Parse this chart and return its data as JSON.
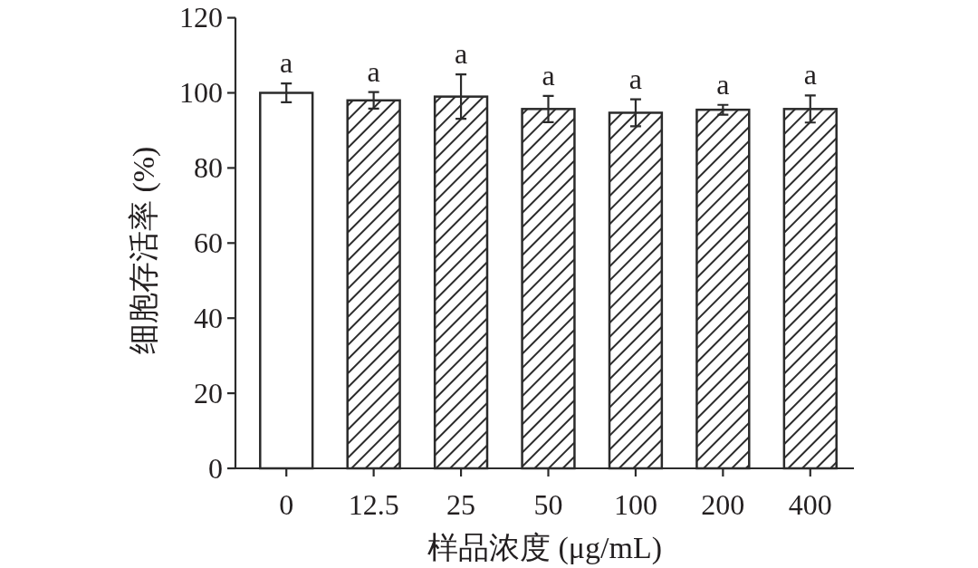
{
  "chart_data": {
    "type": "bar",
    "xlabel": "样品浓度 (μg/mL)",
    "ylabel": "细胞存活率 (%)",
    "categories": [
      "0",
      "12.5",
      "25",
      "50",
      "100",
      "200",
      "400"
    ],
    "values": [
      100,
      98,
      99,
      95.7,
      94.7,
      95.5,
      95.7
    ],
    "errors": [
      2.5,
      2.2,
      5.9,
      3.5,
      3.6,
      1.3,
      3.6
    ],
    "colors": [
      "#ffffff",
      "#2b2b2b",
      "#2b2b2b",
      "#2b2b2b",
      "#2b2b2b",
      "#2b2b2b",
      "#2b2b2b"
    ],
    "ylim": [
      0,
      120
    ],
    "yticks": [
      0,
      20,
      40,
      60,
      80,
      100,
      120
    ],
    "annotations": [
      {
        "text": "a",
        "x": "0",
        "y": 102.5
      },
      {
        "text": "a",
        "x": "12.5",
        "y": 100.2
      },
      {
        "text": "a",
        "x": "25",
        "y": 104.9
      },
      {
        "text": "a",
        "x": "50",
        "y": 99.2
      },
      {
        "text": "a",
        "x": "100",
        "y": 98.3
      },
      {
        "text": "a",
        "x": "200",
        "y": 96.8
      },
      {
        "text": "a",
        "x": "400",
        "y": 99.3
      }
    ]
  }
}
